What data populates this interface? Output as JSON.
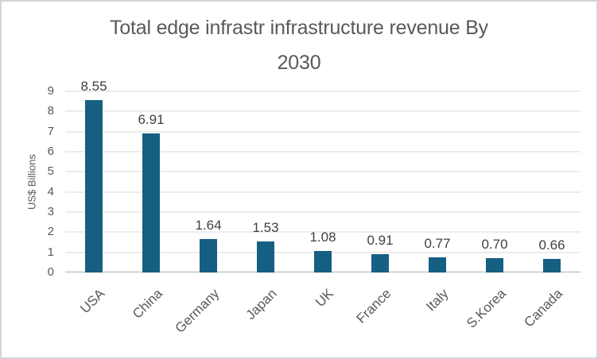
{
  "window": {
    "background": "#ffffff",
    "border_color": "#d5d5d5"
  },
  "title_lines": [
    "Total edge infrastr infrastructure revenue By",
    "2030"
  ],
  "chart_data": {
    "type": "bar",
    "title": "Total edge infrastr infrastructure revenue By 2030",
    "categories": [
      "USA",
      "China",
      "Germany",
      "Japan",
      "UK",
      "France",
      "Italy",
      "S.Korea",
      "Canada"
    ],
    "values": [
      8.55,
      6.91,
      1.64,
      1.53,
      1.08,
      0.91,
      0.77,
      0.7,
      0.66
    ],
    "value_labels": [
      "8.55",
      "6.91",
      "1.64",
      "1.53",
      "1.08",
      "0.91",
      "0.77",
      "0.70",
      "0.66"
    ],
    "xlabel": "",
    "ylabel": "US$ Billions",
    "ylim": [
      0,
      9
    ],
    "yticks": [
      0,
      1,
      2,
      3,
      4,
      5,
      6,
      7,
      8,
      9
    ],
    "grid": true,
    "legend": "none",
    "data_labels": true,
    "x_label_rotation_deg": -45,
    "bar_color": "#156082",
    "gridline_color": "#d9d9d9",
    "axis_line_color": "#d0d0d0",
    "title_color": "#595959",
    "tick_label_color": "#595959",
    "data_label_color": "#404040"
  }
}
